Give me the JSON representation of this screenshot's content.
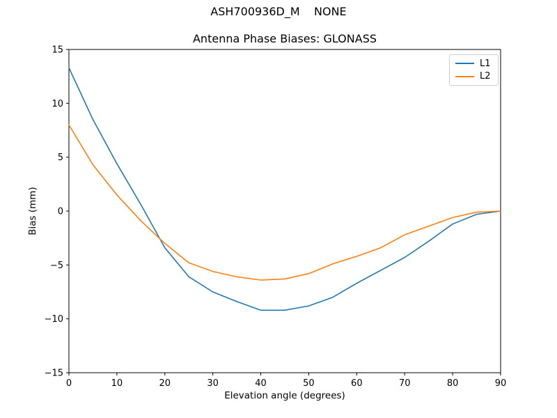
{
  "figure": {
    "suptitle": "ASH700936D_M    NONE",
    "background_color": "#ffffff",
    "spine_color": "#000000"
  },
  "chart_data": {
    "type": "line",
    "title": "Antenna Phase Biases: GLONASS",
    "xlabel": "Elevation angle (degrees)",
    "ylabel": "Bias (mm)",
    "xlim": [
      0,
      90
    ],
    "ylim": [
      -15,
      15
    ],
    "x_ticks": [
      0,
      10,
      20,
      30,
      40,
      50,
      60,
      70,
      80,
      90
    ],
    "y_ticks": [
      15,
      10,
      5,
      0,
      -5,
      -10,
      -15
    ],
    "grid": false,
    "legend_position": "upper right",
    "x": [
      0,
      5,
      10,
      15,
      20,
      25,
      30,
      35,
      40,
      45,
      50,
      55,
      60,
      65,
      70,
      75,
      80,
      85,
      90
    ],
    "series": [
      {
        "name": "L1",
        "color": "#1f77b4",
        "values": [
          13.3,
          8.5,
          4.4,
          0.6,
          -3.4,
          -6.1,
          -7.5,
          -8.4,
          -9.2,
          -9.2,
          -8.8,
          -8.0,
          -6.7,
          -5.5,
          -4.3,
          -2.8,
          -1.2,
          -0.3,
          0.0
        ]
      },
      {
        "name": "L2",
        "color": "#ff7f0e",
        "values": [
          8.0,
          4.3,
          1.5,
          -0.9,
          -3.0,
          -4.8,
          -5.6,
          -6.1,
          -6.4,
          -6.3,
          -5.8,
          -4.9,
          -4.2,
          -3.4,
          -2.2,
          -1.4,
          -0.6,
          -0.1,
          0.0
        ]
      }
    ]
  }
}
